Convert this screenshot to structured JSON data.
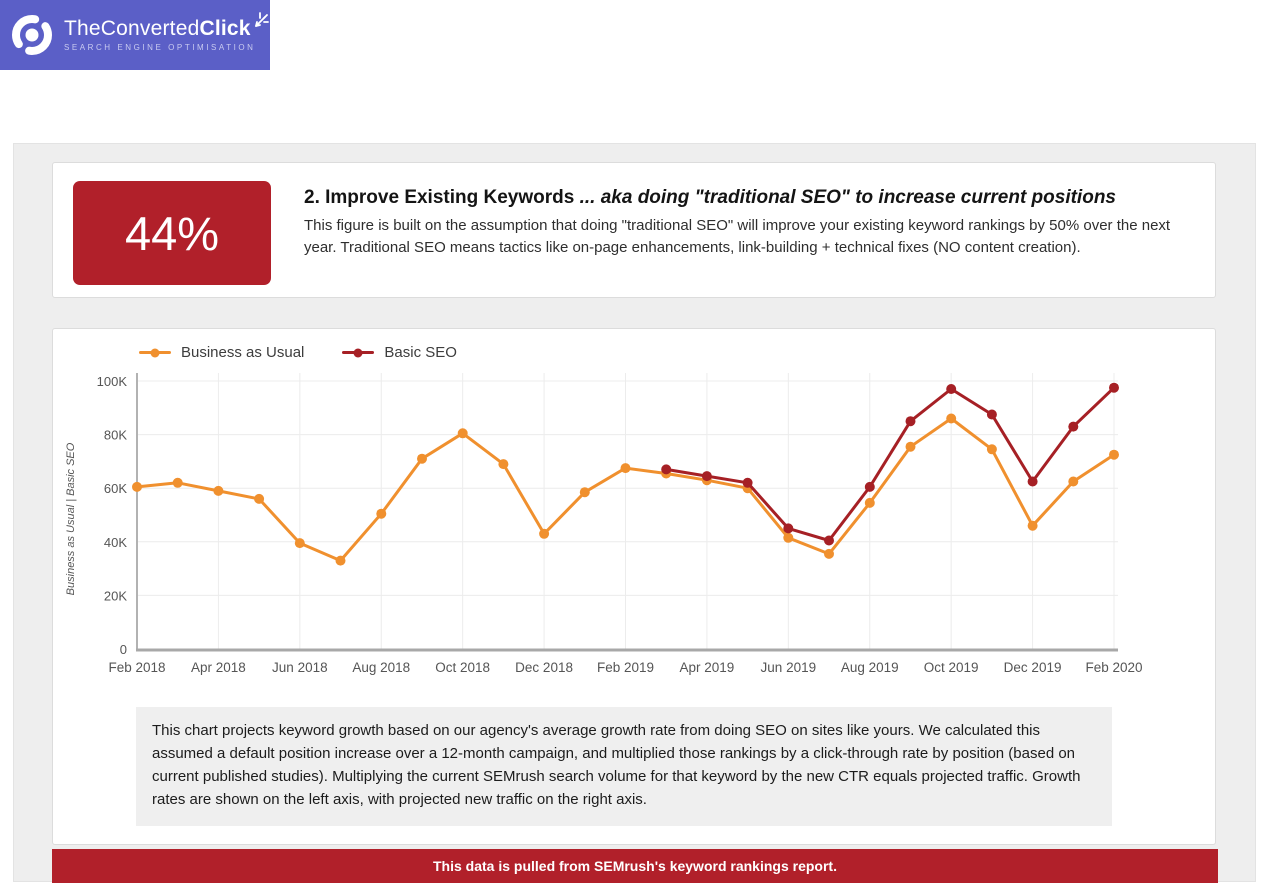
{
  "logo": {
    "brand_light": "TheConverted",
    "brand_bold": "Click",
    "tagline": "SEARCH ENGINE OPTIMISATION"
  },
  "colors": {
    "brand_purple": "#5b5fc7",
    "accent_red": "#b1202a",
    "orange": "#f0902e",
    "dark_red": "#a62025",
    "grid": "#ececec",
    "axis": "#a8a8a8",
    "tick_text": "#555555"
  },
  "stat_card": {
    "percentage": "44%",
    "heading_prefix": "2. Improve Existing Keywords ",
    "heading_italic": "... aka doing \"traditional SEO\" to increase current positions",
    "body": "This figure is built on the assumption that doing \"traditional SEO\" will improve your existing keyword rankings by 50% over the next year. Traditional SEO means tactics like on-page enhancements, link-building + technical fixes (NO content creation)."
  },
  "chart_card": {
    "note": "This chart projects keyword growth based on our agency's average growth rate from doing SEO on sites like yours. We calculated this assumed a default position increase over a 12-month campaign, and multiplied those rankings by a click-through rate by position (based on current published studies). Multiplying the current SEMrush search volume for that keyword by the new CTR equals projected traffic. Growth rates are shown on the left axis, with projected new traffic on the right axis."
  },
  "banner": {
    "text": "This data is pulled from SEMrush's keyword rankings report."
  },
  "chart_data": {
    "type": "line",
    "title": "",
    "xlabel": "",
    "ylabel": "Business as Usual | Basic SEO",
    "unit": "K",
    "ylim": [
      0,
      100
    ],
    "y_ticks": [
      0,
      20,
      40,
      60,
      80,
      100
    ],
    "y_tick_labels": [
      "0",
      "20K",
      "40K",
      "60K",
      "80K",
      "100K"
    ],
    "x": [
      "Feb 2018",
      "Mar 2018",
      "Apr 2018",
      "May 2018",
      "Jun 2018",
      "Jul 2018",
      "Aug 2018",
      "Sep 2018",
      "Oct 2018",
      "Nov 2018",
      "Dec 2018",
      "Jan 2019",
      "Feb 2019",
      "Mar 2019",
      "Apr 2019",
      "May 2019",
      "Jun 2019",
      "Jul 2019",
      "Aug 2019",
      "Sep 2019",
      "Oct 2019",
      "Nov 2019",
      "Dec 2019",
      "Jan 2020",
      "Feb 2020"
    ],
    "x_tick_every": 2,
    "x_tick_labels": [
      "Feb 2018",
      "Apr 2018",
      "Jun 2018",
      "Aug 2018",
      "Oct 2018",
      "Dec 2018",
      "Feb 2019",
      "Apr 2019",
      "Jun 2019",
      "Aug 2019",
      "Oct 2019",
      "Dec 2019",
      "Feb 2020"
    ],
    "grid": true,
    "legend_position": "top-left",
    "series": [
      {
        "name": "Business as Usual",
        "color": "#f0902e",
        "values": [
          60.5,
          62,
          59,
          56,
          39.5,
          33,
          50.5,
          71,
          80.5,
          69,
          43,
          58.5,
          67.5,
          65.5,
          63,
          60,
          41.5,
          35.5,
          54.5,
          75.5,
          86,
          74.5,
          46,
          62.5,
          72.5
        ]
      },
      {
        "name": "Basic SEO",
        "color": "#a62025",
        "values": [
          null,
          null,
          null,
          null,
          null,
          null,
          null,
          null,
          null,
          null,
          null,
          null,
          null,
          67,
          64.5,
          62,
          45,
          40.5,
          60.5,
          85,
          97,
          87.5,
          62.5,
          83,
          97.5
        ]
      }
    ]
  }
}
